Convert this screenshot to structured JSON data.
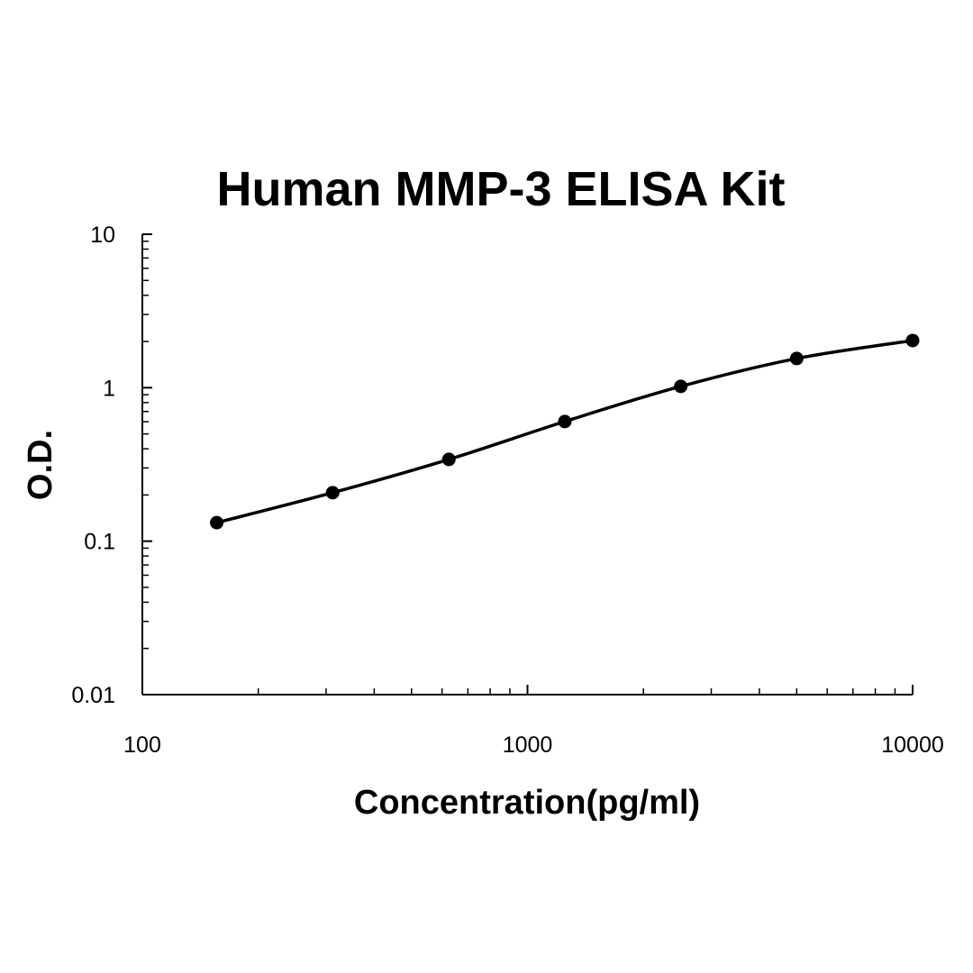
{
  "chart_data": {
    "type": "line",
    "title": "Human MMP-3 ELISA Kit",
    "xlabel": "Concentration(pg/ml)",
    "ylabel": "O.D.",
    "x_scale": "log",
    "y_scale": "log",
    "xlim": [
      100,
      10000
    ],
    "ylim": [
      0.01,
      10
    ],
    "x_ticks": [
      "100",
      "1000",
      "10000"
    ],
    "y_ticks": [
      "0.01",
      "0.1",
      "1",
      "10"
    ],
    "grid": false,
    "legend": "none",
    "series": [
      {
        "x": [
          156,
          312,
          625,
          1250,
          2500,
          5000,
          10000
        ],
        "y": [
          0.132,
          0.207,
          0.341,
          0.602,
          1.02,
          1.55,
          2.03
        ],
        "color": "#000000",
        "marker": "circle",
        "smooth": true
      }
    ]
  }
}
